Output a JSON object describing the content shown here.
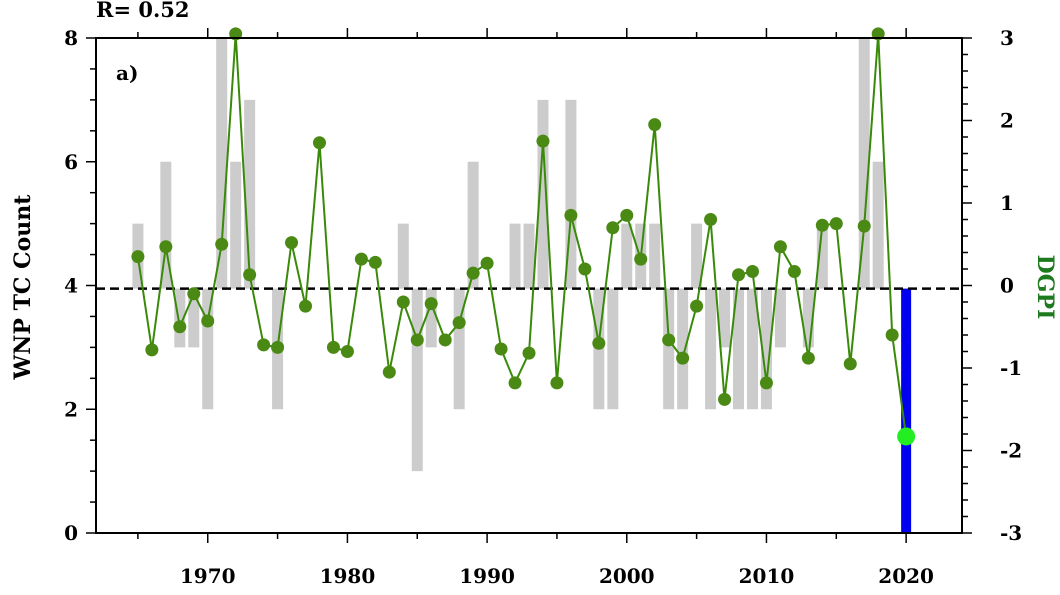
{
  "chart_data": {
    "type": "bar+line",
    "header": "R= 0.52",
    "panel_label": "a)",
    "ylabel_left": "WNP TC Count",
    "ylabel_right": "DGPI",
    "xlim": [
      1962,
      2024
    ],
    "ylim_left": [
      0,
      8
    ],
    "ylim_right": [
      -3,
      3
    ],
    "xticks": [
      1970,
      1980,
      1990,
      2000,
      2010,
      2020
    ],
    "yticks_left": [
      0,
      2,
      4,
      6,
      8
    ],
    "yticks_right": [
      -3,
      -2,
      -1,
      0,
      1,
      2,
      3
    ],
    "reference_line": 3.95,
    "colors": {
      "bars": "#cccccc",
      "highlight_bar": "#0000ee",
      "line": "#3a8a0a",
      "marker": "#4a8a14",
      "highlight_marker": "#22ee22",
      "right_label": "#1e7a1e"
    },
    "bars": [
      {
        "year": 1965,
        "value": 5
      },
      {
        "year": 1967,
        "value": 6
      },
      {
        "year": 1968,
        "value": 3
      },
      {
        "year": 1969,
        "value": 3
      },
      {
        "year": 1970,
        "value": 2
      },
      {
        "year": 1971,
        "value": 8
      },
      {
        "year": 1972,
        "value": 6
      },
      {
        "year": 1973,
        "value": 7
      },
      {
        "year": 1975,
        "value": 2
      },
      {
        "year": 1984,
        "value": 5
      },
      {
        "year": 1985,
        "value": 1
      },
      {
        "year": 1986,
        "value": 3
      },
      {
        "year": 1988,
        "value": 2
      },
      {
        "year": 1989,
        "value": 6
      },
      {
        "year": 1992,
        "value": 5
      },
      {
        "year": 1993,
        "value": 5
      },
      {
        "year": 1994,
        "value": 7
      },
      {
        "year": 1996,
        "value": 7
      },
      {
        "year": 1998,
        "value": 2
      },
      {
        "year": 1999,
        "value": 2
      },
      {
        "year": 2000,
        "value": 5
      },
      {
        "year": 2001,
        "value": 5
      },
      {
        "year": 2002,
        "value": 5
      },
      {
        "year": 2003,
        "value": 2
      },
      {
        "year": 2004,
        "value": 2
      },
      {
        "year": 2005,
        "value": 5
      },
      {
        "year": 2006,
        "value": 2
      },
      {
        "year": 2007,
        "value": 3
      },
      {
        "year": 2008,
        "value": 2
      },
      {
        "year": 2009,
        "value": 2
      },
      {
        "year": 2010,
        "value": 2
      },
      {
        "year": 2011,
        "value": 3
      },
      {
        "year": 2013,
        "value": 3
      },
      {
        "year": 2014,
        "value": 5
      },
      {
        "year": 2017,
        "value": 8
      },
      {
        "year": 2018,
        "value": 6
      },
      {
        "year": 2020,
        "value": 0,
        "highlight": true
      }
    ],
    "series": [
      {
        "x": [
          1965,
          1966,
          1967,
          1968,
          1969,
          1970,
          1971,
          1972,
          1973,
          1974,
          1975,
          1976,
          1977,
          1978,
          1979,
          1980,
          1981,
          1982,
          1983,
          1984,
          1985,
          1986,
          1987,
          1988,
          1989,
          1990,
          1991,
          1992,
          1993,
          1994,
          1995,
          1996,
          1997,
          1998,
          1999,
          2000,
          2001,
          2002,
          2003,
          2004,
          2005,
          2006,
          2007,
          2008,
          2009,
          2010,
          2011,
          2012,
          2013,
          2014,
          2015,
          2016,
          2017,
          2018,
          2019,
          2020
        ],
        "values": [
          0.35,
          -0.78,
          0.47,
          -0.5,
          -0.1,
          -0.43,
          0.5,
          3.05,
          0.13,
          -0.72,
          -0.75,
          0.52,
          -0.25,
          1.73,
          -0.75,
          -0.8,
          0.32,
          0.28,
          -1.05,
          -0.2,
          -0.66,
          -0.22,
          -0.66,
          -0.45,
          0.15,
          0.27,
          -0.77,
          -1.18,
          -0.82,
          1.75,
          -1.18,
          0.85,
          0.2,
          -0.7,
          0.7,
          0.85,
          0.32,
          1.95,
          -0.66,
          -0.88,
          -0.25,
          0.8,
          -1.38,
          0.13,
          0.17,
          -1.18,
          0.47,
          0.17,
          -0.88,
          0.73,
          0.75,
          -0.95,
          0.72,
          3.05,
          -0.6,
          -1.83
        ]
      }
    ]
  }
}
